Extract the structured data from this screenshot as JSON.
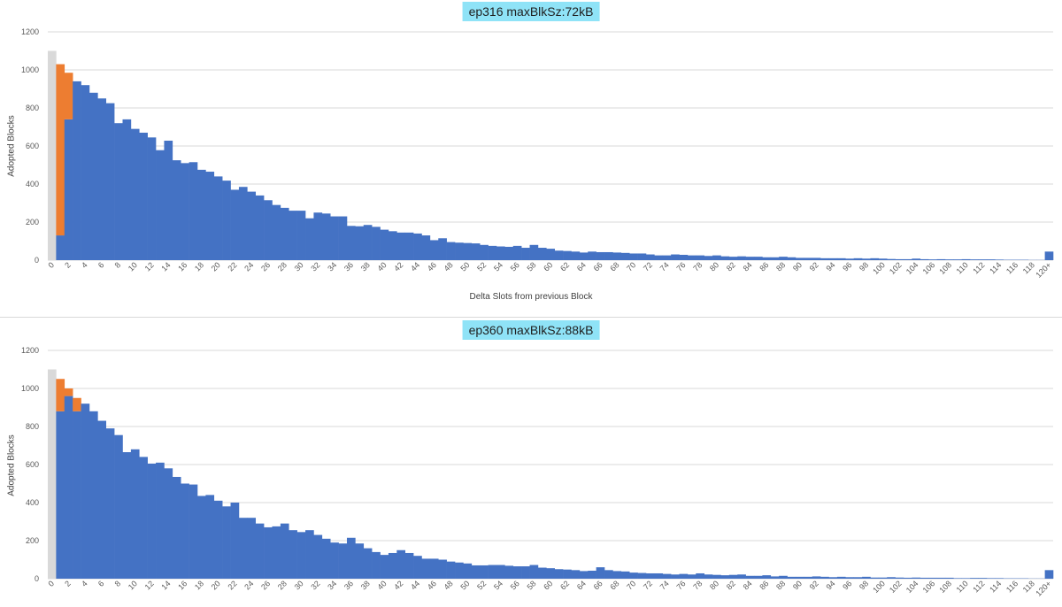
{
  "colors": {
    "primary": "#4472c4",
    "secondary": "#ed7d31",
    "reference": "#d9d9d9",
    "title_bg": "#8fe3f7",
    "grid": "#d9d9d9",
    "axis_text": "#595959"
  },
  "chart_data": [
    {
      "type": "bar",
      "title": "ep316 maxBlkSz:72kB",
      "xlabel": "Delta Slots from previous Block",
      "ylabel": "Adopted Blocks",
      "ylim": [
        0,
        1200
      ],
      "yticks": [
        0,
        200,
        400,
        600,
        800,
        1000,
        1200
      ],
      "grid": true,
      "legend": "none",
      "categories": [
        "0",
        "1",
        "2",
        "3",
        "4",
        "5",
        "6",
        "7",
        "8",
        "9",
        "10",
        "11",
        "12",
        "13",
        "14",
        "15",
        "16",
        "17",
        "18",
        "19",
        "20",
        "21",
        "22",
        "23",
        "24",
        "25",
        "26",
        "27",
        "28",
        "29",
        "30",
        "31",
        "32",
        "33",
        "34",
        "35",
        "36",
        "37",
        "38",
        "39",
        "40",
        "41",
        "42",
        "43",
        "44",
        "45",
        "46",
        "47",
        "48",
        "49",
        "50",
        "51",
        "52",
        "53",
        "54",
        "55",
        "56",
        "57",
        "58",
        "59",
        "60",
        "61",
        "62",
        "63",
        "64",
        "65",
        "66",
        "67",
        "68",
        "69",
        "70",
        "71",
        "72",
        "73",
        "74",
        "75",
        "76",
        "77",
        "78",
        "79",
        "80",
        "81",
        "82",
        "83",
        "84",
        "85",
        "86",
        "87",
        "88",
        "89",
        "90",
        "91",
        "92",
        "93",
        "94",
        "95",
        "96",
        "97",
        "98",
        "99",
        "100",
        "101",
        "102",
        "103",
        "104",
        "105",
        "106",
        "107",
        "108",
        "109",
        "110",
        "111",
        "112",
        "113",
        "114",
        "115",
        "116",
        "117",
        "118",
        "119",
        "120+"
      ],
      "tick_labels": [
        "0",
        "2",
        "4",
        "6",
        "8",
        "10",
        "12",
        "14",
        "16",
        "18",
        "20",
        "22",
        "24",
        "26",
        "28",
        "30",
        "32",
        "34",
        "36",
        "38",
        "40",
        "42",
        "44",
        "46",
        "48",
        "50",
        "52",
        "54",
        "56",
        "58",
        "60",
        "62",
        "64",
        "66",
        "68",
        "70",
        "72",
        "74",
        "76",
        "78",
        "80",
        "82",
        "84",
        "86",
        "88",
        "90",
        "92",
        "94",
        "96",
        "98",
        "100",
        "102",
        "104",
        "106",
        "108",
        "110",
        "112",
        "114",
        "116",
        "118",
        "120+"
      ],
      "series": [
        {
          "color": "#4472c4",
          "values": [
            0,
            130,
            740,
            940,
            920,
            880,
            850,
            825,
            720,
            740,
            690,
            670,
            645,
            578,
            628,
            525,
            510,
            515,
            475,
            465,
            440,
            418,
            370,
            385,
            360,
            340,
            315,
            290,
            275,
            260,
            260,
            220,
            250,
            245,
            230,
            230,
            180,
            178,
            185,
            175,
            160,
            152,
            145,
            145,
            140,
            130,
            105,
            115,
            95,
            92,
            90,
            88,
            80,
            75,
            72,
            70,
            75,
            65,
            80,
            65,
            60,
            50,
            48,
            45,
            40,
            45,
            42,
            42,
            40,
            38,
            35,
            35,
            30,
            25,
            25,
            30,
            28,
            25,
            25,
            22,
            25,
            20,
            18,
            20,
            18,
            18,
            15,
            15,
            18,
            15,
            12,
            12,
            12,
            10,
            10,
            10,
            8,
            10,
            8,
            10,
            8,
            6,
            5,
            5,
            8,
            5,
            4,
            5,
            4,
            4,
            5,
            4,
            4,
            4,
            3,
            2,
            2,
            2,
            1,
            1,
            45
          ]
        },
        {
          "color": "#ed7d31",
          "values": [
            0,
            900,
            245,
            0,
            0,
            0,
            0,
            0,
            0,
            0,
            0,
            0,
            0,
            0,
            0,
            0,
            0,
            0,
            0,
            0,
            0,
            0,
            0,
            0,
            0,
            0,
            0,
            0,
            0,
            0,
            0,
            0,
            0,
            0,
            0,
            0,
            0,
            0,
            0,
            0,
            0,
            0,
            0,
            0,
            0,
            0,
            0,
            0,
            0,
            0,
            0,
            0,
            0,
            0,
            0,
            0,
            0,
            0,
            0,
            0,
            0,
            0,
            0,
            0,
            0,
            0,
            0,
            0,
            0,
            0,
            0,
            0,
            0,
            0,
            0,
            0,
            0,
            0,
            0,
            0,
            0,
            0,
            0,
            0,
            0,
            0,
            0,
            0,
            0,
            0,
            0,
            0,
            0,
            0,
            0,
            0,
            0,
            0,
            0,
            0,
            0,
            0,
            0,
            0,
            0,
            0,
            0,
            0,
            0,
            0,
            0,
            0,
            0,
            0,
            0,
            0,
            0,
            0,
            0,
            0,
            0
          ]
        },
        {
          "color": "#d9d9d9",
          "values": [
            1100,
            0,
            0,
            0,
            0,
            0,
            0,
            0,
            0,
            0,
            0,
            0,
            0,
            0,
            0,
            0,
            0,
            0,
            0,
            0,
            0,
            0,
            0,
            0,
            0,
            0,
            0,
            0,
            0,
            0,
            0,
            0,
            0,
            0,
            0,
            0,
            0,
            0,
            0,
            0,
            0,
            0,
            0,
            0,
            0,
            0,
            0,
            0,
            0,
            0,
            0,
            0,
            0,
            0,
            0,
            0,
            0,
            0,
            0,
            0,
            0,
            0,
            0,
            0,
            0,
            0,
            0,
            0,
            0,
            0,
            0,
            0,
            0,
            0,
            0,
            0,
            0,
            0,
            0,
            0,
            0,
            0,
            0,
            0,
            0,
            0,
            0,
            0,
            0,
            0,
            0,
            0,
            0,
            0,
            0,
            0,
            0,
            0,
            0,
            0,
            0,
            0,
            0,
            0,
            0,
            0,
            0,
            0,
            0,
            0,
            0,
            0,
            0,
            0,
            0,
            0,
            0,
            0,
            0,
            0,
            0
          ]
        }
      ]
    },
    {
      "type": "bar",
      "title": "ep360 maxBlkSz:88kB",
      "xlabel": "",
      "ylabel": "Adopted Blocks",
      "ylim": [
        0,
        1200
      ],
      "yticks": [
        0,
        200,
        400,
        600,
        800,
        1000,
        1200
      ],
      "grid": true,
      "legend": "none",
      "categories": [
        "0",
        "1",
        "2",
        "3",
        "4",
        "5",
        "6",
        "7",
        "8",
        "9",
        "10",
        "11",
        "12",
        "13",
        "14",
        "15",
        "16",
        "17",
        "18",
        "19",
        "20",
        "21",
        "22",
        "23",
        "24",
        "25",
        "26",
        "27",
        "28",
        "29",
        "30",
        "31",
        "32",
        "33",
        "34",
        "35",
        "36",
        "37",
        "38",
        "39",
        "40",
        "41",
        "42",
        "43",
        "44",
        "45",
        "46",
        "47",
        "48",
        "49",
        "50",
        "51",
        "52",
        "53",
        "54",
        "55",
        "56",
        "57",
        "58",
        "59",
        "60",
        "61",
        "62",
        "63",
        "64",
        "65",
        "66",
        "67",
        "68",
        "69",
        "70",
        "71",
        "72",
        "73",
        "74",
        "75",
        "76",
        "77",
        "78",
        "79",
        "80",
        "81",
        "82",
        "83",
        "84",
        "85",
        "86",
        "87",
        "88",
        "89",
        "90",
        "91",
        "92",
        "93",
        "94",
        "95",
        "96",
        "97",
        "98",
        "99",
        "100",
        "101",
        "102",
        "103",
        "104",
        "105",
        "106",
        "107",
        "108",
        "109",
        "110",
        "111",
        "112",
        "113",
        "114",
        "115",
        "116",
        "117",
        "118",
        "119",
        "120+"
      ],
      "tick_labels": [
        "0",
        "2",
        "4",
        "6",
        "8",
        "10",
        "12",
        "14",
        "16",
        "18",
        "20",
        "22",
        "24",
        "26",
        "28",
        "30",
        "32",
        "34",
        "36",
        "38",
        "40",
        "42",
        "44",
        "46",
        "48",
        "50",
        "52",
        "54",
        "56",
        "58",
        "60",
        "62",
        "64",
        "66",
        "68",
        "70",
        "72",
        "74",
        "76",
        "78",
        "80",
        "82",
        "84",
        "86",
        "88",
        "90",
        "92",
        "94",
        "96",
        "98",
        "100",
        "102",
        "104",
        "106",
        "108",
        "110",
        "112",
        "114",
        "116",
        "118",
        "120+"
      ],
      "series": [
        {
          "color": "#4472c4",
          "values": [
            0,
            880,
            960,
            880,
            920,
            880,
            830,
            790,
            755,
            665,
            680,
            640,
            605,
            610,
            580,
            535,
            500,
            495,
            435,
            440,
            410,
            380,
            400,
            320,
            320,
            290,
            270,
            275,
            290,
            255,
            245,
            255,
            230,
            210,
            190,
            185,
            215,
            185,
            160,
            140,
            125,
            135,
            150,
            135,
            120,
            105,
            105,
            100,
            90,
            85,
            80,
            70,
            70,
            72,
            72,
            68,
            65,
            65,
            72,
            58,
            55,
            50,
            48,
            45,
            40,
            42,
            60,
            45,
            40,
            38,
            32,
            30,
            28,
            28,
            25,
            22,
            25,
            22,
            28,
            22,
            20,
            18,
            20,
            22,
            15,
            15,
            18,
            12,
            15,
            10,
            10,
            10,
            12,
            10,
            8,
            10,
            8,
            8,
            10,
            6,
            6,
            8,
            6,
            5,
            6,
            5,
            5,
            5,
            5,
            3,
            3,
            4,
            4,
            3,
            3,
            2,
            2,
            2,
            1,
            1,
            45
          ]
        },
        {
          "color": "#ed7d31",
          "values": [
            0,
            170,
            40,
            70,
            0,
            0,
            0,
            0,
            0,
            0,
            0,
            0,
            0,
            0,
            0,
            0,
            0,
            0,
            0,
            0,
            0,
            0,
            0,
            0,
            0,
            0,
            0,
            0,
            0,
            0,
            0,
            0,
            0,
            0,
            0,
            0,
            0,
            0,
            0,
            0,
            0,
            0,
            0,
            0,
            0,
            0,
            0,
            0,
            0,
            0,
            0,
            0,
            0,
            0,
            0,
            0,
            0,
            0,
            0,
            0,
            0,
            0,
            0,
            0,
            0,
            0,
            0,
            0,
            0,
            0,
            0,
            0,
            0,
            0,
            0,
            0,
            0,
            0,
            0,
            0,
            0,
            0,
            0,
            0,
            0,
            0,
            0,
            0,
            0,
            0,
            0,
            0,
            0,
            0,
            0,
            0,
            0,
            0,
            0,
            0,
            0,
            0,
            0,
            0,
            0,
            0,
            0,
            0,
            0,
            0,
            0,
            0,
            0,
            0,
            0,
            0,
            0,
            0,
            0,
            0,
            0
          ]
        },
        {
          "color": "#d9d9d9",
          "values": [
            1100,
            0,
            0,
            0,
            0,
            0,
            0,
            0,
            0,
            0,
            0,
            0,
            0,
            0,
            0,
            0,
            0,
            0,
            0,
            0,
            0,
            0,
            0,
            0,
            0,
            0,
            0,
            0,
            0,
            0,
            0,
            0,
            0,
            0,
            0,
            0,
            0,
            0,
            0,
            0,
            0,
            0,
            0,
            0,
            0,
            0,
            0,
            0,
            0,
            0,
            0,
            0,
            0,
            0,
            0,
            0,
            0,
            0,
            0,
            0,
            0,
            0,
            0,
            0,
            0,
            0,
            0,
            0,
            0,
            0,
            0,
            0,
            0,
            0,
            0,
            0,
            0,
            0,
            0,
            0,
            0,
            0,
            0,
            0,
            0,
            0,
            0,
            0,
            0,
            0,
            0,
            0,
            0,
            0,
            0,
            0,
            0,
            0,
            0,
            0,
            0,
            0,
            0,
            0,
            0,
            0,
            0,
            0,
            0,
            0,
            0,
            0,
            0,
            0,
            0,
            0,
            0,
            0,
            0,
            0,
            0
          ]
        }
      ]
    }
  ]
}
